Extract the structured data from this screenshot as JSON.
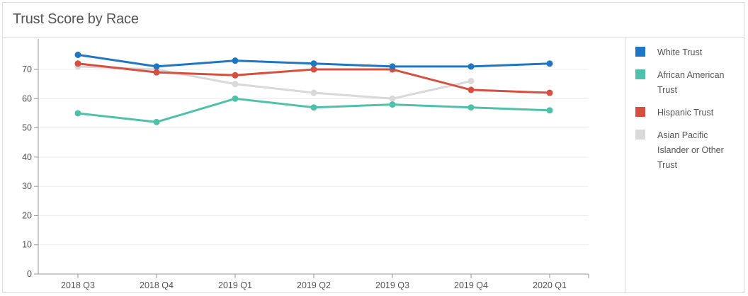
{
  "chart_data": {
    "type": "line",
    "title": "Trust Score by Race",
    "categories": [
      "2018 Q3",
      "2018 Q4",
      "2019 Q1",
      "2019 Q2",
      "2019 Q3",
      "2019 Q4",
      "2020 Q1"
    ],
    "ylim": [
      0,
      78
    ],
    "yticks": [
      0,
      10,
      20,
      30,
      40,
      50,
      60,
      70
    ],
    "grid": true,
    "legend_position": "right",
    "series": [
      {
        "name": "White Trust",
        "color": "#1f77c4",
        "values": [
          75,
          71,
          73,
          72,
          71,
          71,
          72
        ]
      },
      {
        "name": "African American Trust",
        "color": "#4fc1aa",
        "values": [
          55,
          52,
          60,
          57,
          58,
          57,
          56
        ]
      },
      {
        "name": "Hispanic Trust",
        "color": "#d64f3f",
        "values": [
          72,
          69,
          68,
          70,
          70,
          63,
          62
        ]
      },
      {
        "name": "Asian Pacific Islander or Other Trust",
        "color": "#d9d9d9",
        "values": [
          71,
          70,
          65,
          62,
          60,
          66,
          null
        ]
      }
    ]
  }
}
